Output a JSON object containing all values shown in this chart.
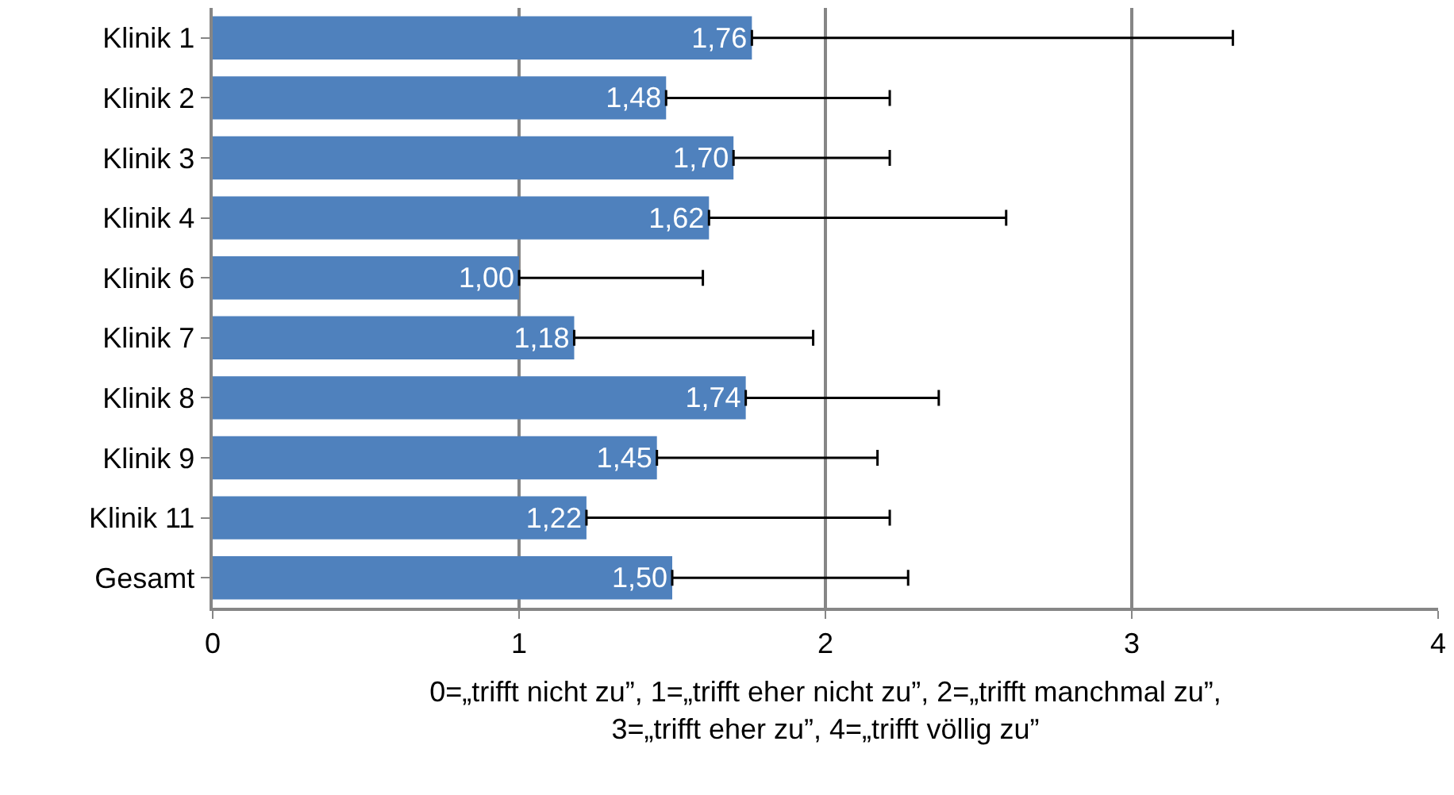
{
  "chart_data": {
    "type": "bar",
    "orientation": "horizontal",
    "xlabel": "0=„trifft nicht zu”, 1=„trifft eher nicht zu”, 2=„trifft manchmal zu”,\n3=„trifft eher zu”, 4=„trifft völlig zu”",
    "categories": [
      "Klinik 1",
      "Klinik 2",
      "Klinik 3",
      "Klinik 4",
      "Klinik 6",
      "Klinik 7",
      "Klinik 8",
      "Klinik 9",
      "Klinik 11",
      "Gesamt"
    ],
    "values": [
      1.76,
      1.48,
      1.7,
      1.62,
      1.0,
      1.18,
      1.74,
      1.45,
      1.22,
      1.5
    ],
    "value_labels": [
      "1,76",
      "1,48",
      "1,70",
      "1,62",
      "1,00",
      "1,18",
      "1,74",
      "1,45",
      "1,22",
      "1,50"
    ],
    "errors": [
      [
        1.76,
        3.33
      ],
      [
        1.48,
        2.21
      ],
      [
        1.7,
        2.21
      ],
      [
        1.62,
        2.59
      ],
      [
        1.0,
        1.6
      ],
      [
        1.18,
        1.96
      ],
      [
        1.74,
        2.37
      ],
      [
        1.45,
        2.17
      ],
      [
        1.22,
        2.21
      ],
      [
        1.5,
        2.27
      ]
    ],
    "color": "#4f81bd",
    "xlim": [
      0,
      4
    ],
    "xticks": [
      0,
      1,
      2,
      3,
      4
    ],
    "grid": "x",
    "legend": false
  }
}
